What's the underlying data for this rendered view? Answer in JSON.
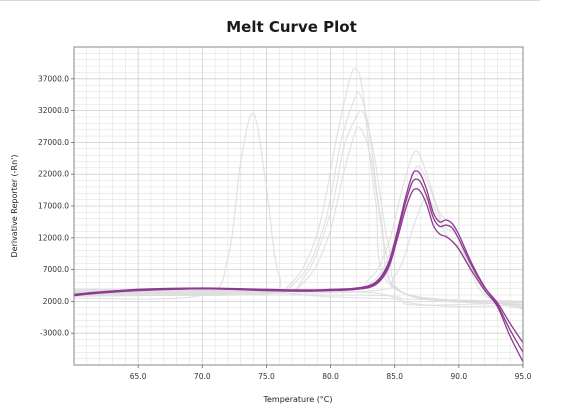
{
  "chart_data": {
    "type": "line",
    "title": "Melt Curve Plot",
    "xlabel": "Temperature (°C)",
    "ylabel": "Derivative Reporter (-Rn')",
    "xlim": [
      60.0,
      95.0
    ],
    "ylim": [
      -8000,
      42000
    ],
    "x_ticks": [
      65.0,
      70.0,
      75.0,
      80.0,
      85.0,
      90.0,
      95.0
    ],
    "x_tick_labels": [
      "65.0",
      "70.0",
      "75.0",
      "80.0",
      "85.0",
      "90.0",
      "95.0"
    ],
    "y_ticks": [
      -3000,
      2000,
      7000,
      12000,
      17000,
      22000,
      27000,
      32000,
      37000
    ],
    "y_tick_labels": [
      "-3000.0",
      "2000.0",
      "7000.0",
      "12000.0",
      "17000.0",
      "22000.0",
      "27000.0",
      "32000.0",
      "37000.0"
    ],
    "grid": true,
    "colors": {
      "highlight": "#8e3a92",
      "background_curves": "#dcdcdc",
      "grid": "#cfcfcf",
      "frame": "#888888"
    },
    "series": [
      {
        "highlighted": true,
        "x": [
          60.0,
          62.0,
          65.0,
          70.0,
          75.0,
          78.0,
          80.0,
          82.0,
          83.5,
          84.5,
          85.2,
          85.8,
          86.3,
          86.6,
          87.0,
          87.5,
          88.0,
          88.5,
          89.0,
          89.5,
          90.0,
          91.0,
          92.0,
          93.0,
          94.0,
          95.0
        ],
        "y": [
          3000,
          3400,
          3900,
          4100,
          3900,
          3800,
          3900,
          4100,
          5000,
          8000,
          13000,
          18000,
          21500,
          22500,
          22000,
          19500,
          16000,
          14500,
          14800,
          14200,
          12500,
          8000,
          4300,
          1500,
          -2500,
          -6000
        ]
      },
      {
        "highlighted": true,
        "x": [
          60.0,
          62.0,
          65.0,
          70.0,
          75.0,
          78.0,
          80.0,
          82.0,
          83.5,
          84.5,
          85.2,
          85.8,
          86.3,
          86.6,
          87.0,
          87.5,
          88.0,
          88.5,
          89.0,
          89.5,
          90.0,
          91.0,
          92.0,
          93.0,
          94.0,
          95.0
        ],
        "y": [
          3100,
          3500,
          3800,
          4000,
          3800,
          3700,
          3800,
          4000,
          4800,
          7600,
          12500,
          17200,
          20400,
          21200,
          20800,
          18500,
          15200,
          13800,
          14000,
          13500,
          11800,
          7600,
          4200,
          1800,
          -1500,
          -4500
        ]
      },
      {
        "highlighted": true,
        "x": [
          60.0,
          62.0,
          65.0,
          70.0,
          75.0,
          78.0,
          80.0,
          82.0,
          83.5,
          84.5,
          85.2,
          85.8,
          86.3,
          86.6,
          87.0,
          87.5,
          88.0,
          88.5,
          89.0,
          89.5,
          90.0,
          91.0,
          92.0,
          93.0,
          94.0,
          95.0
        ],
        "y": [
          2900,
          3300,
          3700,
          4000,
          3700,
          3600,
          3700,
          3900,
          4600,
          7200,
          11800,
          16200,
          19000,
          19700,
          19300,
          17200,
          14000,
          12600,
          12200,
          11400,
          10200,
          6800,
          3800,
          1200,
          -3500,
          -7500
        ]
      },
      {
        "highlighted": false,
        "x": [
          60.0,
          70.0,
          72.0,
          73.0,
          74.0,
          75.0,
          76.0,
          78.0,
          95.0
        ],
        "y": [
          2500,
          3000,
          9000,
          24000,
          31500,
          20000,
          6000,
          3000,
          2000
        ]
      },
      {
        "highlighted": false,
        "x": [
          60.0,
          74.0,
          77.0,
          79.0,
          80.5,
          81.5,
          82.0,
          82.5,
          83.5,
          85.0,
          95.0
        ],
        "y": [
          3500,
          3500,
          5000,
          13000,
          28000,
          37000,
          38500,
          35000,
          18000,
          4000,
          2000
        ]
      },
      {
        "highlighted": false,
        "x": [
          60.0,
          74.0,
          77.5,
          79.5,
          80.8,
          81.8,
          82.3,
          83.0,
          84.0,
          85.5,
          95.0
        ],
        "y": [
          3200,
          3300,
          5500,
          14000,
          27000,
          33500,
          34500,
          29000,
          14000,
          3500,
          1500
        ]
      },
      {
        "highlighted": false,
        "x": [
          60.0,
          75.0,
          78.0,
          80.0,
          81.0,
          82.0,
          82.6,
          83.4,
          84.5,
          86.0,
          95.0
        ],
        "y": [
          3000,
          3200,
          6000,
          16000,
          26000,
          31000,
          31500,
          25000,
          11000,
          3000,
          1800
        ]
      },
      {
        "highlighted": false,
        "x": [
          60.0,
          75.0,
          78.0,
          79.8,
          81.0,
          81.9,
          82.4,
          83.2,
          84.3,
          85.8,
          95.0
        ],
        "y": [
          3400,
          3400,
          5200,
          12000,
          22000,
          28500,
          29000,
          24000,
          10000,
          3200,
          2000
        ]
      },
      {
        "highlighted": false,
        "x": [
          60.0,
          80.0,
          83.0,
          84.5,
          85.5,
          86.3,
          86.8,
          87.5,
          88.5,
          89.5,
          90.5,
          92.0,
          95.0
        ],
        "y": [
          3800,
          3800,
          5500,
          11000,
          19000,
          24500,
          25500,
          22000,
          16000,
          14000,
          9000,
          3000,
          1000
        ]
      },
      {
        "highlighted": false,
        "x": [
          60.0,
          80.0,
          83.3,
          84.8,
          85.8,
          86.5,
          87.0,
          87.8,
          88.8,
          89.8,
          90.8,
          92.5,
          95.0
        ],
        "y": [
          3600,
          3700,
          5200,
          10500,
          17500,
          22500,
          23000,
          19500,
          14000,
          12500,
          8000,
          2500,
          800
        ]
      },
      {
        "highlighted": false,
        "x": [
          60.0,
          82.0,
          85.0,
          86.5,
          87.3,
          88.0,
          89.0,
          90.0,
          91.0,
          92.5,
          95.0
        ],
        "y": [
          3300,
          3500,
          6000,
          14000,
          18000,
          17000,
          12500,
          10500,
          7000,
          2500,
          1200
        ]
      },
      {
        "highlighted": false,
        "x": [
          60.0,
          70.0,
          80.0,
          85.0,
          86.0,
          90.0,
          95.0
        ],
        "y": [
          2800,
          3000,
          3000,
          2800,
          1500,
          1500,
          1800
        ]
      },
      {
        "highlighted": false,
        "x": [
          60.0,
          70.0,
          80.0,
          84.0,
          86.0,
          90.0,
          95.0
        ],
        "y": [
          3900,
          3800,
          3600,
          3200,
          1800,
          1200,
          1500
        ]
      }
    ]
  }
}
